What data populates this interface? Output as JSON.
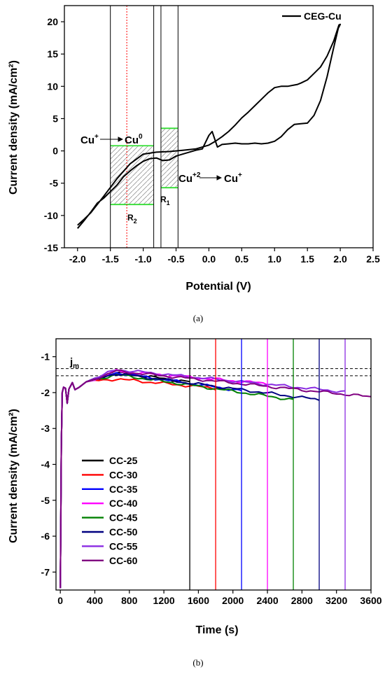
{
  "chart_data": [
    {
      "type": "line",
      "ylabel": "Current density (mA/cm²)",
      "xlabel": "Potential (V)",
      "xlim": [
        -2.2,
        2.5
      ],
      "ylim": [
        -15,
        22.5
      ],
      "xticks": [
        "-2.0",
        "-1.5",
        "-1.0",
        "-0.5",
        "0.0",
        "0.5",
        "1.0",
        "1.5",
        "2.0",
        "2.5"
      ],
      "yticks": [
        "20",
        "15",
        "10",
        "5",
        "0",
        "-5",
        "-10",
        "-15"
      ],
      "series": [
        {
          "name": "CEG-Cu",
          "x": [
            -2.0,
            -1.9,
            -1.8,
            -1.7,
            -1.6,
            -1.5,
            -1.4,
            -1.3,
            -1.2,
            -1.1,
            -1.0,
            -0.9,
            -0.8,
            -0.7,
            -0.6,
            -0.5,
            -0.4,
            -0.3,
            -0.2,
            -0.1,
            0.0,
            0.05,
            0.1,
            0.13,
            0.2,
            0.3,
            0.4,
            0.5,
            0.6,
            0.7,
            0.8,
            0.9,
            1.0,
            1.1,
            1.2,
            1.3,
            1.4,
            1.5,
            1.6,
            1.7,
            1.8,
            1.9,
            1.97,
            2.0,
            1.98,
            1.9,
            1.8,
            1.7,
            1.6,
            1.5,
            1.4,
            1.35,
            1.3,
            1.2,
            1.1,
            1.0,
            0.9,
            0.8,
            0.7,
            0.6,
            0.5,
            0.4,
            0.3,
            0.2,
            0.1,
            0.0,
            -0.2,
            -0.4,
            -0.6,
            -0.8,
            -1.0,
            -1.2,
            -1.4,
            -1.6,
            -1.8,
            -1.9,
            -2.0
          ],
          "y": [
            -12.0,
            -10.8,
            -9.5,
            -8.1,
            -7.3,
            -6.3,
            -5.3,
            -4.0,
            -3.1,
            -2.3,
            -1.6,
            -1.2,
            -1.1,
            -1.5,
            -1.4,
            -0.8,
            -0.5,
            -0.2,
            0.1,
            0.3,
            2.4,
            3.0,
            1.5,
            0.6,
            1.0,
            1.1,
            1.2,
            1.1,
            1.1,
            1.2,
            1.1,
            1.2,
            1.5,
            2.2,
            3.3,
            4.1,
            4.2,
            4.3,
            5.5,
            7.8,
            11.5,
            16.0,
            19.0,
            19.6,
            19.5,
            17.0,
            14.7,
            13.0,
            12.0,
            11.0,
            10.5,
            10.3,
            10.2,
            10.0,
            10.0,
            9.8,
            9.0,
            8.0,
            7.0,
            6.0,
            5.1,
            4.0,
            3.0,
            2.2,
            1.5,
            0.9,
            0.3,
            0.1,
            -0.1,
            -0.2,
            -0.5,
            -2.0,
            -4.3,
            -7.0,
            -9.6,
            -10.6,
            -11.5
          ]
        }
      ],
      "vertical_lines": [
        -1.5,
        -0.84,
        -0.73,
        -0.47
      ],
      "red_dotted_line": -1.25,
      "annotations": {
        "left_reaction_from": "Cu",
        "left_reaction_from_sup": "+",
        "left_reaction_to": "Cu",
        "left_reaction_to_sup": "0",
        "right_reaction_from": "Cu",
        "right_reaction_from_sup": "+2",
        "right_reaction_to": "Cu",
        "right_reaction_to_sup": "+",
        "region_1": "R",
        "region_1_sub": "1",
        "region_2": "R",
        "region_2_sub": "2"
      },
      "regions": [
        {
          "label": "R2",
          "x": [
            -1.5,
            -0.84
          ],
          "y": [
            -8.3,
            0.8
          ]
        },
        {
          "label": "R1",
          "x": [
            -0.73,
            -0.47
          ],
          "y": [
            -5.7,
            3.5
          ]
        }
      ],
      "caption": "(a)"
    },
    {
      "type": "line",
      "ylabel": "Current density (mA/cm²)",
      "xlabel": "Time (s)",
      "xlim": [
        -50,
        3600
      ],
      "ylim": [
        -7.5,
        -0.5
      ],
      "xticks": [
        "0",
        "400",
        "800",
        "1200",
        "1600",
        "2000",
        "2400",
        "2800",
        "3200",
        "3600"
      ],
      "yticks": [
        "-1",
        "-2",
        "-3",
        "-4",
        "-5",
        "-6",
        "-7"
      ],
      "jm_label": "j",
      "jm_sub": "m",
      "jm_lines": [
        -1.33,
        -1.53
      ],
      "legend_position": "lower-left",
      "series": [
        {
          "name": "CC-25",
          "color": "#000000",
          "end": 1500,
          "plateau": -1.45,
          "end_value": -1.7
        },
        {
          "name": "CC-30",
          "color": "#ff0000",
          "end": 1800,
          "plateau": -1.62,
          "end_value": -1.88
        },
        {
          "name": "CC-35",
          "color": "#0000ff",
          "end": 2100,
          "plateau": -1.45,
          "end_value": -1.95
        },
        {
          "name": "CC-40",
          "color": "#ff00ff",
          "end": 2400,
          "plateau": -1.4,
          "end_value": -1.75
        },
        {
          "name": "CC-45",
          "color": "#008000",
          "end": 2700,
          "plateau": -1.5,
          "end_value": -2.2
        },
        {
          "name": "CC-50",
          "color": "#000080",
          "end": 3000,
          "plateau": -1.47,
          "end_value": -2.2
        },
        {
          "name": "CC-55",
          "color": "#8a2be2",
          "end": 3300,
          "plateau": -1.36,
          "end_value": -1.98
        },
        {
          "name": "CC-60",
          "color": "#800080",
          "end": 3600,
          "plateau": -1.4,
          "end_value": -2.12
        }
      ],
      "caption": "(b)"
    }
  ]
}
